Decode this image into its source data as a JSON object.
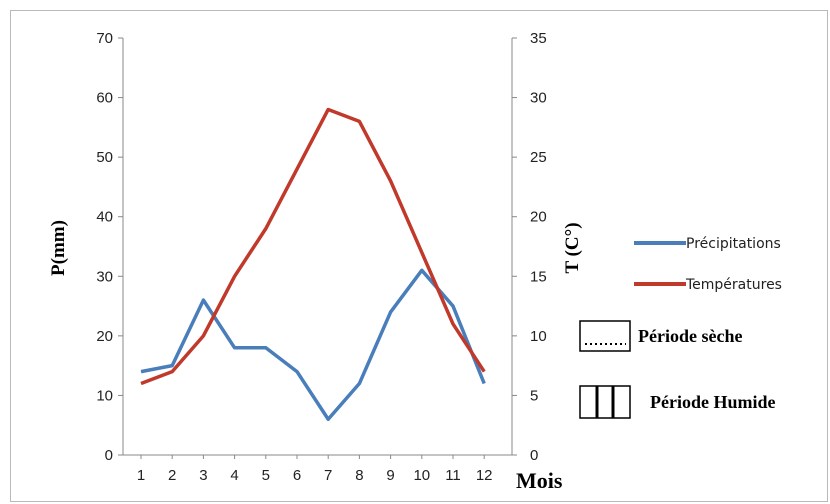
{
  "chart_data": {
    "type": "line",
    "x": [
      1,
      2,
      3,
      4,
      5,
      6,
      7,
      8,
      9,
      10,
      11,
      12
    ],
    "x_tick_labels": [
      "1",
      "2",
      "3",
      "4",
      "5",
      "6",
      "7",
      "8",
      "9",
      "10",
      "11",
      "12"
    ],
    "xlabel": "Mois",
    "ylabel_left": "P(mm)",
    "ylabel_right": "T (C°)",
    "ylim_left": [
      0,
      70
    ],
    "ylim_right": [
      0,
      35
    ],
    "y_ticks_left": [
      "0",
      "10",
      "20",
      "30",
      "40",
      "50",
      "60",
      "70"
    ],
    "y_ticks_right": [
      "0",
      "5",
      "10",
      "15",
      "20",
      "25",
      "30",
      "35"
    ],
    "grid": false,
    "legend_position": "right",
    "series": [
      {
        "name": "Précipitations",
        "axis": "left",
        "color": "#4a7ebb",
        "values": [
          14,
          15,
          26,
          18,
          18,
          14,
          6,
          12,
          24,
          31,
          25,
          12
        ]
      },
      {
        "name": "Températures",
        "axis": "right",
        "color": "#c0392b",
        "values": [
          6,
          7,
          10,
          15,
          19,
          24,
          29,
          28,
          23,
          17,
          11,
          7
        ]
      }
    ],
    "periods": [
      {
        "label": "Période sèche",
        "pattern": "dotted"
      },
      {
        "label": "Période Humide",
        "pattern": "vertical-bars"
      }
    ]
  }
}
